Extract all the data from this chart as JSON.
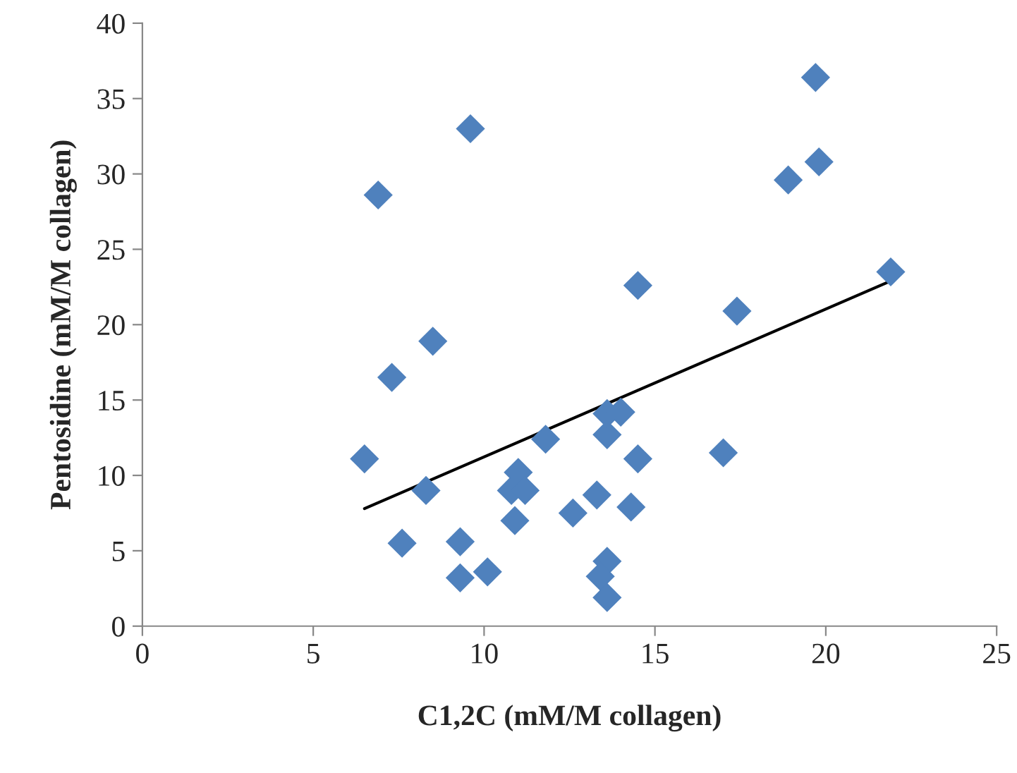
{
  "chart_data": {
    "type": "scatter",
    "xlabel": "C1,2C (mM/M collagen)",
    "ylabel": "Pentosidine (mM/M collagen)",
    "xlim": [
      0,
      25
    ],
    "xticks": [
      0,
      5,
      10,
      15,
      20,
      25
    ],
    "ylim": [
      0,
      40
    ],
    "yticks": [
      0,
      5,
      10,
      15,
      20,
      25,
      30,
      35,
      40
    ],
    "grid": false,
    "legend": false,
    "marker": "diamond",
    "series": [
      {
        "color": "#4f81bd",
        "x": [
          6.5,
          6.9,
          9.6,
          7.3,
          8.5,
          8.3,
          7.6,
          9.3,
          9.3,
          10.1,
          10.9,
          10.8,
          11.0,
          11.2,
          11.8,
          12.6,
          13.3,
          13.6,
          13.4,
          13.6,
          13.6,
          13.6,
          14.0,
          14.5,
          14.3,
          14.5,
          17.0,
          17.4,
          19.7,
          19.8,
          18.9,
          21.9
        ],
        "values": [
          11.1,
          28.6,
          33.0,
          16.5,
          18.9,
          9.0,
          5.5,
          5.6,
          3.2,
          3.6,
          7.0,
          9.0,
          10.2,
          9.0,
          12.4,
          7.5,
          8.7,
          4.3,
          3.3,
          1.9,
          12.7,
          14.1,
          14.2,
          11.1,
          7.9,
          22.6,
          11.5,
          20.9,
          36.4,
          30.8,
          29.6,
          23.5
        ]
      },
      {
        "type": "line",
        "color": "#000000",
        "x": [
          6.5,
          21.9
        ],
        "values": [
          7.8,
          22.9
        ],
        "marker": "none"
      }
    ]
  }
}
